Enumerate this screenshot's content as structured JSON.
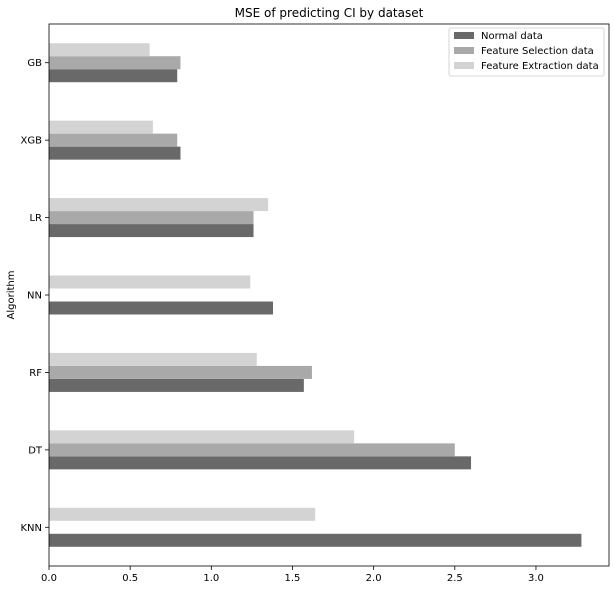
{
  "chart_data": {
    "type": "bar",
    "orientation": "horizontal",
    "title": "MSE of predicting CI by dataset",
    "xlabel": "",
    "ylabel": "Algorithm",
    "categories": [
      "KNN",
      "DT",
      "RF",
      "NN",
      "LR",
      "XGB",
      "GB"
    ],
    "series": [
      {
        "name": "Normal data",
        "color": "#696969",
        "values": [
          3.28,
          2.6,
          1.57,
          1.38,
          1.26,
          0.81,
          0.79
        ]
      },
      {
        "name": "Feature Selection data",
        "color": "#a9a9a9",
        "values": [
          0,
          2.5,
          1.62,
          0,
          1.26,
          0.79,
          0.81
        ]
      },
      {
        "name": "Feature Extraction data",
        "color": "#d3d3d3",
        "values": [
          1.64,
          1.88,
          1.28,
          1.24,
          1.35,
          0.64,
          0.62
        ]
      }
    ],
    "xlim": [
      0,
      3.45
    ],
    "xticks": [
      "0.0",
      "0.5",
      "1.0",
      "1.5",
      "2.0",
      "2.5",
      "3.0"
    ],
    "grid": false,
    "legend_position": "top-right"
  }
}
